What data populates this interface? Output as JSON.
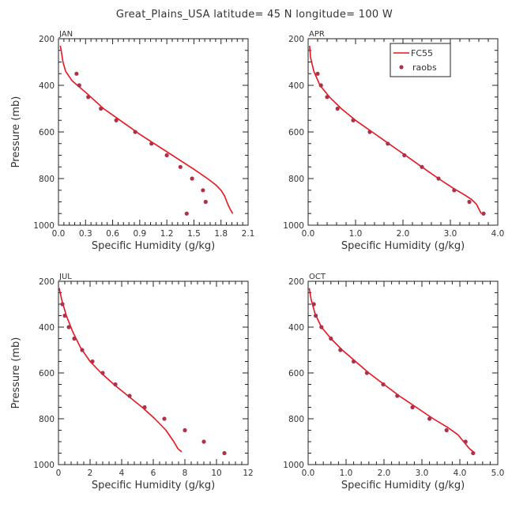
{
  "chart_data": {
    "title": "Great_Plains_USA  latitude= 45 N longitude= 100 W",
    "type": "line",
    "legend": {
      "position": "top-right",
      "entries": [
        {
          "name": "FC55",
          "style": "line",
          "color": "#e8141e"
        },
        {
          "name": "raobs",
          "style": "marker",
          "color": "#b0304a"
        }
      ]
    },
    "panels": [
      {
        "label": "JAN",
        "xlabel": "Specific Humidity (g/kg)",
        "ylabel": "Pressure (mb)",
        "xlim": [
          0,
          2.1
        ],
        "ylim": [
          1000,
          200
        ],
        "xticks": [
          0.0,
          0.3,
          0.6,
          0.9,
          1.2,
          1.5,
          1.8,
          2.1
        ],
        "xtick_labels": [
          "0.0",
          "0.3",
          "0.6",
          "0.9",
          "1.2",
          "1.5",
          "1.8",
          "2.1"
        ],
        "yticks": [
          200,
          400,
          600,
          800,
          1000
        ],
        "ytick_labels": [
          "200",
          "400",
          "600",
          "800",
          "1000"
        ],
        "series": [
          {
            "name": "FC55",
            "x": [
              0.02,
              0.03,
              0.05,
              0.08,
              0.15,
              0.3,
              0.5,
              0.7,
              0.9,
              1.1,
              1.3,
              1.5,
              1.65,
              1.75,
              1.8,
              1.84,
              1.87,
              1.9,
              1.93
            ],
            "y": [
              230,
              250,
              300,
              340,
              380,
              430,
              500,
              555,
              610,
              660,
              710,
              760,
              800,
              830,
              850,
              875,
              905,
              930,
              950
            ]
          },
          {
            "name": "raobs",
            "x": [
              0.2,
              0.23,
              0.33,
              0.47,
              0.64,
              0.85,
              1.03,
              1.2,
              1.35,
              1.48,
              1.6,
              1.63,
              1.42
            ],
            "y": [
              350,
              400,
              450,
              500,
              550,
              600,
              650,
              700,
              750,
              800,
              850,
              900,
              950
            ]
          }
        ]
      },
      {
        "label": "APR",
        "xlabel": "Specific Humidity (g/kg)",
        "ylabel": "",
        "xlim": [
          0,
          4.0
        ],
        "ylim": [
          1000,
          200
        ],
        "xticks": [
          0.0,
          1.0,
          2.0,
          3.0,
          4.0
        ],
        "xtick_labels": [
          "0.0",
          "1.0",
          "2.0",
          "3.0",
          "4.0"
        ],
        "yticks": [
          200,
          400,
          600,
          800,
          1000
        ],
        "ytick_labels": [
          "200",
          "400",
          "600",
          "800",
          "1000"
        ],
        "series": [
          {
            "name": "FC55",
            "x": [
              0.03,
              0.05,
              0.12,
              0.25,
              0.45,
              0.7,
              1.0,
              1.35,
              1.7,
              2.05,
              2.4,
              2.75,
              3.05,
              3.3,
              3.45,
              3.55,
              3.6,
              3.65
            ],
            "y": [
              230,
              280,
              340,
              400,
              450,
              500,
              550,
              600,
              650,
              700,
              750,
              800,
              840,
              870,
              890,
              910,
              930,
              950
            ]
          },
          {
            "name": "raobs",
            "x": [
              0.2,
              0.27,
              0.4,
              0.62,
              0.95,
              1.3,
              1.68,
              2.03,
              2.4,
              2.75,
              3.08,
              3.4,
              3.7
            ],
            "y": [
              350,
              400,
              450,
              500,
              550,
              600,
              650,
              700,
              750,
              800,
              850,
              900,
              950
            ]
          }
        ]
      },
      {
        "label": "JUL",
        "xlabel": "Specific Humidity (g/kg)",
        "ylabel": "Pressure (mb)",
        "xlim": [
          0,
          12
        ],
        "ylim": [
          1000,
          200
        ],
        "xticks": [
          0,
          2,
          4,
          6,
          8,
          10,
          12
        ],
        "xtick_labels": [
          "0",
          "2",
          "4",
          "6",
          "8",
          "10",
          "12"
        ],
        "yticks": [
          200,
          400,
          600,
          800,
          1000
        ],
        "ytick_labels": [
          "200",
          "400",
          "600",
          "800",
          "1000"
        ],
        "series": [
          {
            "name": "FC55",
            "x": [
              0.05,
              0.2,
              0.5,
              0.9,
              1.4,
              2.0,
              2.7,
              3.5,
              4.4,
              5.3,
              6.1,
              6.8,
              7.3,
              7.55,
              7.8
            ],
            "y": [
              230,
              280,
              350,
              420,
              490,
              550,
              600,
              650,
              700,
              750,
              800,
              850,
              900,
              930,
              945
            ]
          },
          {
            "name": "raobs",
            "x": [
              0.25,
              0.4,
              0.65,
              1.0,
              1.5,
              2.15,
              2.8,
              3.6,
              4.5,
              5.45,
              6.7,
              8.0,
              9.2,
              10.5
            ],
            "y": [
              300,
              350,
              400,
              450,
              500,
              550,
              600,
              650,
              700,
              750,
              800,
              850,
              900,
              950
            ]
          }
        ]
      },
      {
        "label": "OCT",
        "xlabel": "Specific Humidity (g/kg)",
        "ylabel": "",
        "xlim": [
          0,
          5.0
        ],
        "ylim": [
          1000,
          200
        ],
        "xticks": [
          0.0,
          1.0,
          2.0,
          3.0,
          4.0,
          5.0
        ],
        "xtick_labels": [
          "0.0",
          "1.0",
          "2.0",
          "3.0",
          "4.0",
          "5.0"
        ],
        "yticks": [
          200,
          400,
          600,
          800,
          1000
        ],
        "ytick_labels": [
          "200",
          "400",
          "600",
          "800",
          "1000"
        ],
        "series": [
          {
            "name": "FC55",
            "x": [
              0.03,
              0.08,
              0.18,
              0.35,
              0.6,
              0.9,
              1.25,
              1.6,
              2.0,
              2.4,
              2.85,
              3.3,
              3.7,
              3.95,
              4.1,
              4.25,
              4.4
            ],
            "y": [
              230,
              280,
              340,
              400,
              450,
              500,
              550,
              600,
              650,
              700,
              750,
              800,
              840,
              870,
              900,
              930,
              950
            ]
          },
          {
            "name": "raobs",
            "x": [
              0.15,
              0.2,
              0.35,
              0.6,
              0.85,
              1.2,
              1.55,
              1.98,
              2.35,
              2.75,
              3.2,
              3.65,
              4.15,
              4.35
            ],
            "y": [
              300,
              350,
              400,
              450,
              500,
              550,
              600,
              650,
              700,
              750,
              800,
              850,
              900,
              950
            ]
          }
        ]
      }
    ]
  }
}
